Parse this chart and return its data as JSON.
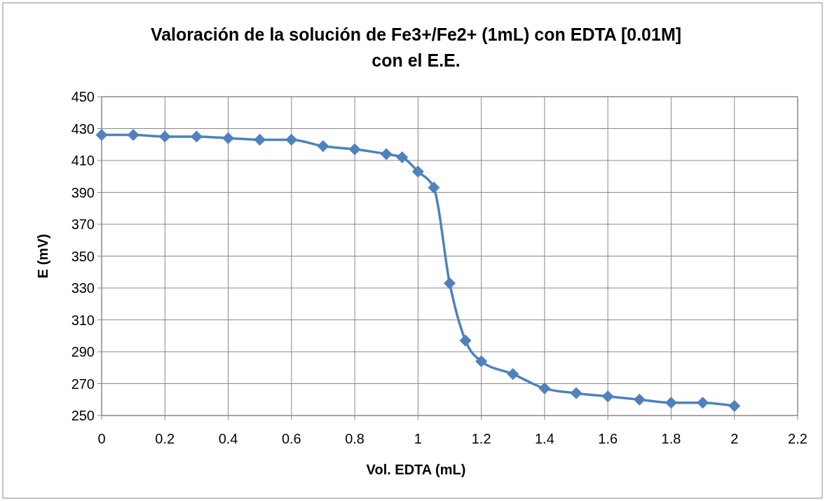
{
  "chart_data": {
    "type": "line",
    "title": "Valoración de la solución de Fe3+/Fe2+ (1mL) con EDTA [0.01M] con el E.E.",
    "xlabel": "Vol. EDTA (mL)",
    "ylabel": "E (mV)",
    "x": [
      0,
      0.1,
      0.2,
      0.3,
      0.4,
      0.5,
      0.6,
      0.7,
      0.8,
      0.9,
      0.95,
      1,
      1.05,
      1.1,
      1.15,
      1.2,
      1.3,
      1.4,
      1.5,
      1.6,
      1.7,
      1.8,
      1.9,
      2
    ],
    "series": [
      {
        "color": "#4f81bd",
        "values": [
          426,
          426,
          425,
          425,
          424,
          423,
          423,
          419,
          417,
          414,
          412,
          403,
          393,
          333,
          297,
          284,
          276,
          267,
          264,
          262,
          260,
          258,
          258,
          256
        ]
      }
    ],
    "xlim": [
      0,
      2.2
    ],
    "xticks": [
      0,
      0.2,
      0.4,
      0.6,
      0.8,
      1,
      1.2,
      1.4,
      1.6,
      1.8,
      2,
      2.2
    ],
    "ylim": [
      250,
      450
    ],
    "yticks": [
      250,
      270,
      290,
      310,
      330,
      350,
      370,
      390,
      410,
      430,
      450
    ],
    "grid": true,
    "marker": "diamond",
    "line_style": "solid"
  }
}
